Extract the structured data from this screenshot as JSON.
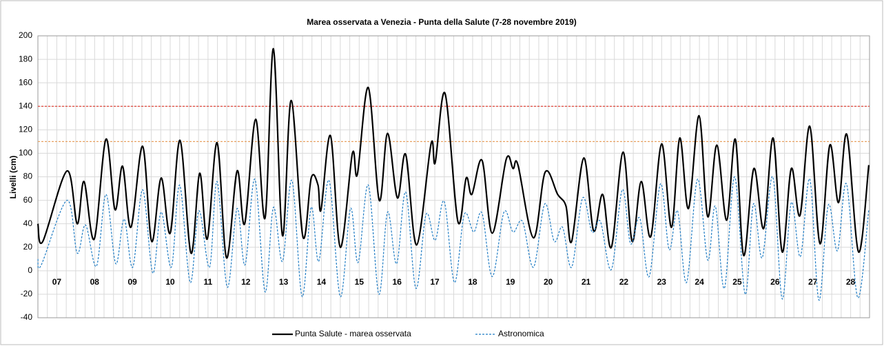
{
  "chart_data": {
    "type": "line",
    "title": "Marea osservata a Venezia - Punta della Salute (7-28 novembre 2019)",
    "y_label": "Livelli  (cm)",
    "xlim": [
      7,
      29
    ],
    "x_minor_step": 0.25,
    "xticks": [
      {
        "value": 7.5,
        "label": "07"
      },
      {
        "value": 8.5,
        "label": "08"
      },
      {
        "value": 9.5,
        "label": "09"
      },
      {
        "value": 10.5,
        "label": "10"
      },
      {
        "value": 11.5,
        "label": "11"
      },
      {
        "value": 12.5,
        "label": "12"
      },
      {
        "value": 13.5,
        "label": "13"
      },
      {
        "value": 14.5,
        "label": "14"
      },
      {
        "value": 15.5,
        "label": "15"
      },
      {
        "value": 16.5,
        "label": "16"
      },
      {
        "value": 17.5,
        "label": "17"
      },
      {
        "value": 18.5,
        "label": "18"
      },
      {
        "value": 19.5,
        "label": "19"
      },
      {
        "value": 20.5,
        "label": "20"
      },
      {
        "value": 21.5,
        "label": "21"
      },
      {
        "value": 22.5,
        "label": "22"
      },
      {
        "value": 23.5,
        "label": "23"
      },
      {
        "value": 24.5,
        "label": "24"
      },
      {
        "value": 25.5,
        "label": "25"
      },
      {
        "value": 26.5,
        "label": "26"
      },
      {
        "value": 27.5,
        "label": "27"
      },
      {
        "value": 28.5,
        "label": "28"
      }
    ],
    "ylim": [
      -40,
      200
    ],
    "yticks": [
      -40,
      -20,
      0,
      20,
      40,
      60,
      80,
      100,
      120,
      140,
      160,
      180,
      200
    ],
    "grid": true,
    "reference_lines": [
      {
        "value": 140,
        "color": "#e0453a"
      },
      {
        "value": 110,
        "color": "#e8a060"
      }
    ],
    "series": [
      {
        "name": "Punta Salute - marea osservata",
        "color": "#000000",
        "dash": false,
        "x": [
          7.0,
          7.13,
          7.77,
          8.04,
          8.22,
          8.49,
          8.8,
          9.04,
          9.24,
          9.46,
          9.77,
          10.01,
          10.26,
          10.5,
          10.76,
          11.05,
          11.28,
          11.48,
          11.74,
          11.99,
          12.27,
          12.47,
          12.76,
          13.01,
          13.23,
          13.47,
          13.7,
          14.01,
          14.23,
          14.41,
          14.49,
          14.74,
          15.0,
          15.32,
          15.45,
          15.74,
          16.03,
          16.25,
          16.51,
          16.73,
          17.02,
          17.4,
          17.51,
          17.77,
          18.11,
          18.33,
          18.48,
          18.75,
          19.02,
          19.39,
          19.57,
          19.7,
          20.11,
          20.42,
          20.75,
          20.97,
          21.12,
          21.44,
          21.7,
          21.94,
          22.17,
          22.48,
          22.72,
          22.96,
          23.21,
          23.5,
          23.76,
          23.98,
          24.21,
          24.49,
          24.72,
          24.96,
          25.22,
          25.45,
          25.67,
          25.94,
          26.2,
          26.45,
          26.69,
          26.93,
          27.16,
          27.42,
          27.69,
          27.95,
          28.18,
          28.4,
          28.71,
          28.98
        ],
        "values": [
          40,
          25,
          85,
          40,
          76,
          27,
          112,
          52,
          89,
          37,
          106,
          25,
          79,
          32,
          111,
          15,
          83,
          27,
          109,
          11,
          85,
          40,
          129,
          45,
          189,
          30,
          145,
          29,
          79,
          73,
          52,
          115,
          20,
          100,
          82,
          156,
          60,
          117,
          62,
          99,
          22,
          108,
          92,
          151,
          42,
          79,
          65,
          94,
          32,
          95,
          87,
          90,
          28,
          84,
          65,
          55,
          25,
          96,
          34,
          65,
          20,
          101,
          25,
          76,
          29,
          108,
          37,
          113,
          53,
          132,
          46,
          107,
          43,
          112,
          13,
          87,
          36,
          113,
          16,
          87,
          47,
          123,
          23,
          107,
          58,
          116,
          16,
          90
        ]
      },
      {
        "name": "Astronomica",
        "color": "#1f7cc4",
        "dash": true,
        "x": [
          7.0,
          7.09,
          7.77,
          8.04,
          8.26,
          8.55,
          8.8,
          9.06,
          9.28,
          9.51,
          9.77,
          10.04,
          10.26,
          10.53,
          10.75,
          11.03,
          11.26,
          11.54,
          11.74,
          12.01,
          12.27,
          12.48,
          12.74,
          13.01,
          13.23,
          13.47,
          13.72,
          13.99,
          14.23,
          14.43,
          14.7,
          15.0,
          15.27,
          15.47,
          15.74,
          16.02,
          16.25,
          16.49,
          16.73,
          17.0,
          17.27,
          17.51,
          17.75,
          18.02,
          18.28,
          18.53,
          18.75,
          19.02,
          19.33,
          19.57,
          19.82,
          20.11,
          20.41,
          20.66,
          20.88,
          21.12,
          21.41,
          21.66,
          21.88,
          22.17,
          22.46,
          22.68,
          22.92,
          23.17,
          23.47,
          23.7,
          23.92,
          24.16,
          24.45,
          24.72,
          24.92,
          25.16,
          25.43,
          25.71,
          25.93,
          26.16,
          26.44,
          26.69,
          26.93,
          27.17,
          27.42,
          27.66,
          27.91,
          28.15,
          28.39,
          28.69,
          28.98
        ],
        "values": [
          10,
          5,
          60,
          15,
          39,
          4,
          65,
          6,
          44,
          3,
          69,
          -2,
          50,
          3,
          73,
          -10,
          51,
          3,
          76,
          -14,
          53,
          5,
          78,
          -18,
          54,
          8,
          77,
          -22,
          54,
          8,
          77,
          -22,
          53,
          7,
          73,
          -20,
          50,
          6,
          67,
          -15,
          48,
          26,
          59,
          -10,
          48,
          33,
          49,
          -5,
          50,
          33,
          42,
          3,
          57,
          25,
          37,
          3,
          62,
          33,
          42,
          1,
          69,
          23,
          45,
          -5,
          74,
          18,
          51,
          -10,
          78,
          9,
          55,
          -15,
          80,
          -20,
          57,
          11,
          80,
          -24,
          58,
          12,
          78,
          -25,
          56,
          17,
          74,
          -23,
          52
        ]
      }
    ]
  }
}
